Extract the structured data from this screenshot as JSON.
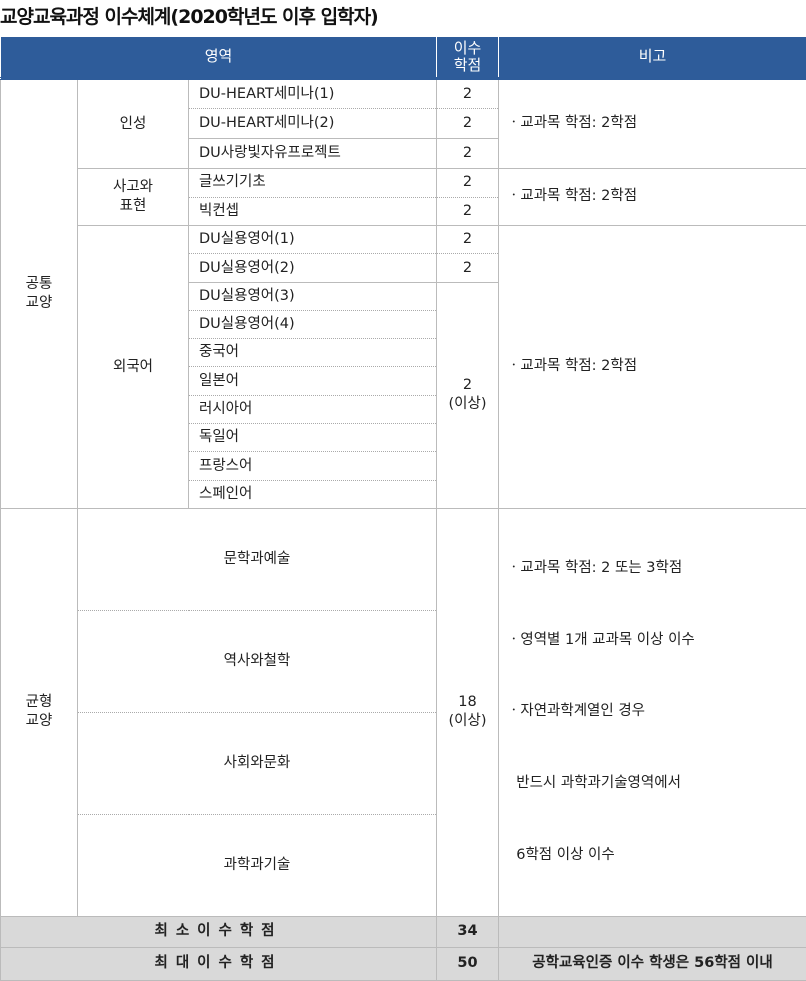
{
  "title": "교양교육과정 이수체계(2020학년도 이후 입학자)",
  "header": {
    "area": "영역",
    "credits": "이수\n학점",
    "note": "비고"
  },
  "common": {
    "label": "공통\n교양",
    "groups": [
      {
        "name": "인성",
        "courses": [
          {
            "name": "DU-HEART세미나(1)",
            "credit": "2"
          },
          {
            "name": "DU-HEART세미나(2)",
            "credit": "2"
          },
          {
            "name": "DU사랑빛자유프로젝트",
            "credit": "2"
          }
        ],
        "note": "ㆍ교과목 학점: 2학점"
      },
      {
        "name": "사고와\n표현",
        "courses": [
          {
            "name": "글쓰기기초",
            "credit": "2"
          },
          {
            "name": "빅컨셉",
            "credit": "2"
          }
        ],
        "note": "ㆍ교과목 학점: 2학점"
      },
      {
        "name": "외국어",
        "courses": [
          {
            "name": "DU실용영어(1)",
            "credit": "2"
          },
          {
            "name": "DU실용영어(2)",
            "credit": "2"
          },
          {
            "name": "DU실용영어(3)"
          },
          {
            "name": "DU실용영어(4)"
          },
          {
            "name": "중국어"
          },
          {
            "name": "일본어"
          },
          {
            "name": "러시아어"
          },
          {
            "name": "독일어"
          },
          {
            "name": "프랑스어"
          },
          {
            "name": "스페인어"
          }
        ],
        "shared_credit": "2\n(이상)",
        "note": "ㆍ교과목 학점: 2학점"
      }
    ]
  },
  "balanced": {
    "label": "균형\n교양",
    "areas": [
      "문학과예술",
      "역사와철학",
      "사회와문화",
      "과학과기술"
    ],
    "credit": "18\n(이상)",
    "notes": [
      "ㆍ교과목 학점: 2 또는 3학점",
      "ㆍ영역별 1개 교과목 이상 이수",
      "ㆍ자연과학계열인 경우",
      "  반드시 과학과기술영역에서",
      "  6학점 이상 이수"
    ]
  },
  "summary": [
    {
      "label": "최소이수학점",
      "credit": "34",
      "note": ""
    },
    {
      "label": "최대이수학점",
      "credit": "50",
      "note": "공학교육인증 이수 학생은 56학점 이내"
    }
  ]
}
